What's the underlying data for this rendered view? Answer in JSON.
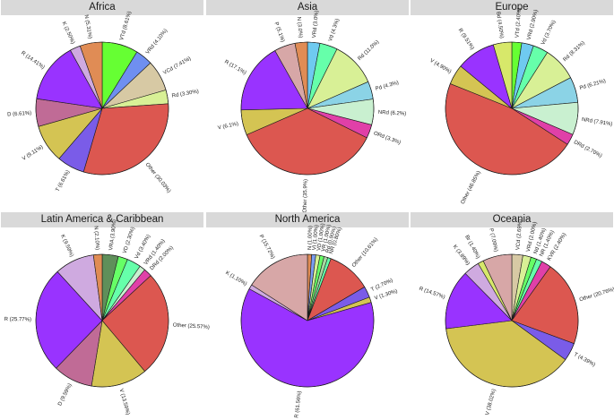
{
  "chart_data": [
    {
      "type": "pie",
      "title": "Africa",
      "slices": [
        {
          "label": "VTd (8.61%)",
          "value": 8.61,
          "color": "#66ff33"
        },
        {
          "label": "VRd (4.10%)",
          "value": 4.1,
          "color": "#6f8ff0"
        },
        {
          "label": "VCd (7.41%)",
          "value": 7.41,
          "color": "#d7c9a4"
        },
        {
          "label": "Rd (3.30%)",
          "value": 3.3,
          "color": "#d8f096"
        },
        {
          "label": "Other (30.03%)",
          "value": 30.03,
          "color": "#dc5750"
        },
        {
          "label": "T (6.61%)",
          "value": 6.61,
          "color": "#7a5ce8"
        },
        {
          "label": "V (9.11%)",
          "value": 9.11,
          "color": "#d4c453"
        },
        {
          "label": "D (6.61%)",
          "value": 6.61,
          "color": "#c06b96"
        },
        {
          "label": "R (14.41%)",
          "value": 14.41,
          "color": "#9933ff"
        },
        {
          "label": "K (2.50%)",
          "value": 2.5,
          "color": "#cfaae0"
        },
        {
          "label": "N (5.31%)",
          "value": 5.31,
          "color": "#e08c55"
        }
      ]
    },
    {
      "type": "pie",
      "title": "Asia",
      "slices": [
        {
          "label": "VRd (3.0%)",
          "value": 3.0,
          "color": "#6fcaf0"
        },
        {
          "label": "Vd (4.3%)",
          "value": 4.3,
          "color": "#66ffaa"
        },
        {
          "label": "Rd (11.0%)",
          "value": 11.0,
          "color": "#d8f096"
        },
        {
          "label": "Pd (4.3%)",
          "value": 4.3,
          "color": "#8bd3e6"
        },
        {
          "label": "NRd (6.2%)",
          "value": 6.2,
          "color": "#c9f0d0"
        },
        {
          "label": "ORd (3.3%)",
          "value": 3.3,
          "color": "#e040a8"
        },
        {
          "label": "Other (35.9%)",
          "value": 35.9,
          "color": "#dc5750"
        },
        {
          "label": "V (6.1%)",
          "value": 6.1,
          "color": "#d4c453"
        },
        {
          "label": "R (17.1%)",
          "value": 17.1,
          "color": "#9933ff"
        },
        {
          "label": "P (5.1%)",
          "value": 5.1,
          "color": "#d7a7a7"
        },
        {
          "label": "N (3.0%)",
          "value": 3.0,
          "color": "#e08c55"
        }
      ]
    },
    {
      "type": "pie",
      "title": "Europe",
      "slices": [
        {
          "label": "VTd (2.40%)",
          "value": 2.4,
          "color": "#66ff33"
        },
        {
          "label": "VRd (2.90%)",
          "value": 2.9,
          "color": "#6fcaf0"
        },
        {
          "label": "Vd (3.70%)",
          "value": 3.7,
          "color": "#66ffaa"
        },
        {
          "label": "Rd (8.31%)",
          "value": 8.31,
          "color": "#d8f096"
        },
        {
          "label": "Pd (6.21%)",
          "value": 6.21,
          "color": "#8bd3e6"
        },
        {
          "label": "NRd (7.91%)",
          "value": 7.91,
          "color": "#c9f0d0"
        },
        {
          "label": "DRd (2.70%)",
          "value": 2.7,
          "color": "#e040a8"
        },
        {
          "label": "Other (46.85%)",
          "value": 46.85,
          "color": "#dc5750"
        },
        {
          "label": "V (4.90%)",
          "value": 4.9,
          "color": "#d4c453"
        },
        {
          "label": "R (9.51%)",
          "value": 9.51,
          "color": "#9933ff"
        },
        {
          "label": "Bd (4.50%)",
          "value": 4.5,
          "color": "#d7e86a"
        }
      ]
    },
    {
      "type": "pie",
      "title": "Latin America & Caribbean",
      "slices": [
        {
          "label": "VRA (3.90%)",
          "value": 3.9,
          "color": "#5f8f5a"
        },
        {
          "label": "VD (2.30%)",
          "value": 2.3,
          "color": "#66ff66"
        },
        {
          "label": "Vd (3.40%)",
          "value": 3.4,
          "color": "#66ffaa"
        },
        {
          "label": "VRd (1.40%)",
          "value": 1.4,
          "color": "#c9f0d0"
        },
        {
          "label": "DRd (2.00%)",
          "value": 2.0,
          "color": "#e040a8"
        },
        {
          "label": "Other (25.57%)",
          "value": 25.57,
          "color": "#dc5750"
        },
        {
          "label": "V (13.59%)",
          "value": 13.59,
          "color": "#d4c453"
        },
        {
          "label": "D (9.59%)",
          "value": 9.59,
          "color": "#c06b96"
        },
        {
          "label": "R (25.77%)",
          "value": 25.77,
          "color": "#9933ff"
        },
        {
          "label": "K (9.59%)",
          "value": 9.59,
          "color": "#cfaae0"
        },
        {
          "label": "N (2.10%)",
          "value": 2.1,
          "color": "#e08c55"
        }
      ]
    },
    {
      "type": "pie",
      "title": "North America",
      "slices": [
        {
          "label": "N (1.00%)",
          "value": 1.0,
          "color": "#e08c55"
        },
        {
          "label": "VI (1.00%)",
          "value": 1.0,
          "color": "#7a9cf0"
        },
        {
          "label": "VD (1.00%)",
          "value": 1.0,
          "color": "#d8f096"
        },
        {
          "label": "VR (1.00%)",
          "value": 1.0,
          "color": "#66ff66"
        },
        {
          "label": "Rd (0.90%)",
          "value": 0.9,
          "color": "#a8d8a0"
        },
        {
          "label": "NR (0.80%)",
          "value": 0.8,
          "color": "#66ffaa"
        },
        {
          "label": "Other (10.61%)",
          "value": 10.61,
          "color": "#dc5750"
        },
        {
          "label": "T (2.70%)",
          "value": 2.7,
          "color": "#7a5ce8"
        },
        {
          "label": "V (1.30%)",
          "value": 1.3,
          "color": "#d4c453"
        },
        {
          "label": "R (61.56%)",
          "value": 61.56,
          "color": "#9933ff"
        },
        {
          "label": "K (1.10%)",
          "value": 1.1,
          "color": "#cfaae0"
        },
        {
          "label": "P (15.72%)",
          "value": 15.72,
          "color": "#d7a7a7"
        }
      ]
    },
    {
      "type": "pie",
      "title": "Oceania",
      "slices": [
        {
          "label": "VCd (2.69%)",
          "value": 2.69,
          "color": "#d7c9a4"
        },
        {
          "label": "VRd (2.00%)",
          "value": 2.0,
          "color": "#d8f096"
        },
        {
          "label": "Nd (1.40%)",
          "value": 1.4,
          "color": "#66ff66"
        },
        {
          "label": "NR (1.40%)",
          "value": 1.4,
          "color": "#66ffaa"
        },
        {
          "label": "KVR (2.40%)",
          "value": 2.4,
          "color": "#e040a8"
        },
        {
          "label": "Other (20.76%)",
          "value": 20.76,
          "color": "#dc5750"
        },
        {
          "label": "T (4.39%)",
          "value": 4.39,
          "color": "#7a5ce8"
        },
        {
          "label": "V (38.02%)",
          "value": 38.02,
          "color": "#d4c453"
        },
        {
          "label": "R (14.57%)",
          "value": 14.57,
          "color": "#9933ff"
        },
        {
          "label": "K (3.89%)",
          "value": 3.89,
          "color": "#cfaae0"
        },
        {
          "label": "Br (1.40%)",
          "value": 1.4,
          "color": "#d7e86a"
        },
        {
          "label": "P (7.09%)",
          "value": 7.09,
          "color": "#d7a7a7"
        }
      ]
    }
  ]
}
